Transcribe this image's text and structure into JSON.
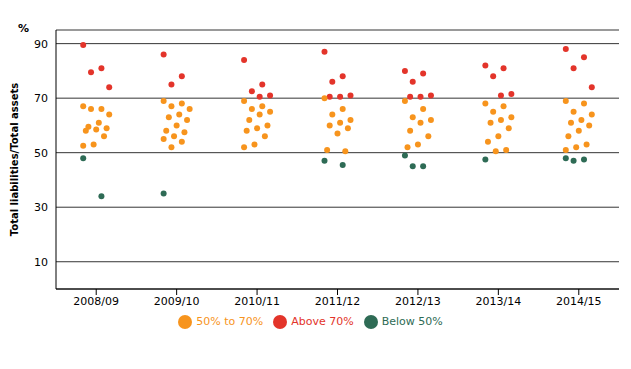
{
  "chart_data": {
    "type": "scatter",
    "y_label": "Total liabilities/Total assets",
    "annotations": [
      "%"
    ],
    "categories": [
      "2008/09",
      "2009/10",
      "2010/11",
      "2011/12",
      "2012/13",
      "2013/14",
      "2014/15"
    ],
    "ylim": [
      0,
      95
    ],
    "yticks": [
      10,
      30,
      50,
      70,
      90
    ],
    "grid": true,
    "legend": "bottom",
    "marker": "circle",
    "series": [
      {
        "name": "Above 70%",
        "color": "#e3342a",
        "x": [
          "2008/09",
          "2008/09",
          "2008/09",
          "2008/09",
          "2009/10",
          "2009/10",
          "2009/10",
          "2010/11",
          "2010/11",
          "2010/11",
          "2010/11",
          "2010/11",
          "2011/12",
          "2011/12",
          "2011/12",
          "2011/12",
          "2011/12",
          "2011/12",
          "2012/13",
          "2012/13",
          "2012/13",
          "2012/13",
          "2012/13",
          "2012/13",
          "2013/14",
          "2013/14",
          "2013/14",
          "2013/14",
          "2013/14",
          "2014/15",
          "2014/15",
          "2014/15",
          "2014/15"
        ],
        "y": [
          89.5,
          81,
          79.5,
          74,
          86,
          78,
          75,
          84,
          75,
          72.5,
          71,
          70.5,
          87,
          78,
          76,
          71,
          70.5,
          70.5,
          80,
          79,
          76,
          71,
          70.5,
          70.5,
          82,
          81,
          78,
          71.5,
          71,
          88,
          85,
          81,
          74
        ]
      },
      {
        "name": "50% to 70%",
        "color": "#f7941d",
        "x": [
          "2008/09",
          "2008/09",
          "2008/09",
          "2008/09",
          "2008/09",
          "2008/09",
          "2008/09",
          "2008/09",
          "2008/09",
          "2008/09",
          "2008/09",
          "2008/09",
          "2009/10",
          "2009/10",
          "2009/10",
          "2009/10",
          "2009/10",
          "2009/10",
          "2009/10",
          "2009/10",
          "2009/10",
          "2009/10",
          "2009/10",
          "2009/10",
          "2009/10",
          "2009/10",
          "2010/11",
          "2010/11",
          "2010/11",
          "2010/11",
          "2010/11",
          "2010/11",
          "2010/11",
          "2010/11",
          "2010/11",
          "2010/11",
          "2010/11",
          "2010/11",
          "2011/12",
          "2011/12",
          "2011/12",
          "2011/12",
          "2011/12",
          "2011/12",
          "2011/12",
          "2011/12",
          "2011/12",
          "2011/12",
          "2012/13",
          "2012/13",
          "2012/13",
          "2012/13",
          "2012/13",
          "2012/13",
          "2012/13",
          "2012/13",
          "2012/13",
          "2013/14",
          "2013/14",
          "2013/14",
          "2013/14",
          "2013/14",
          "2013/14",
          "2013/14",
          "2013/14",
          "2013/14",
          "2013/14",
          "2013/14",
          "2014/15",
          "2014/15",
          "2014/15",
          "2014/15",
          "2014/15",
          "2014/15",
          "2014/15",
          "2014/15",
          "2014/15",
          "2014/15",
          "2014/15",
          "2014/15"
        ],
        "y": [
          67,
          66,
          66,
          64,
          61,
          59.5,
          59,
          58.5,
          58,
          56,
          53,
          52.5,
          69,
          68,
          67,
          66,
          64,
          63,
          62,
          60,
          58,
          57.5,
          56,
          55,
          54,
          52,
          69,
          67,
          66,
          65,
          64,
          62,
          60,
          59,
          58,
          56,
          53,
          52,
          70,
          66,
          64,
          62,
          61,
          60,
          59,
          57,
          51,
          50.5,
          69,
          66,
          63,
          62,
          61,
          58,
          56,
          53,
          52,
          68,
          67,
          65,
          63,
          62,
          61,
          59,
          56,
          54,
          51,
          50.5,
          69,
          68,
          65,
          64,
          62,
          61,
          60,
          58,
          56,
          53,
          52,
          51
        ]
      },
      {
        "name": "Below 50%",
        "color": "#2e6b55",
        "x": [
          "2008/09",
          "2008/09",
          "2009/10",
          "2011/12",
          "2011/12",
          "2012/13",
          "2012/13",
          "2012/13",
          "2013/14",
          "2014/15",
          "2014/15",
          "2014/15"
        ],
        "y": [
          48,
          34,
          35,
          47,
          45.5,
          49,
          45,
          45,
          47.5,
          48,
          47.5,
          47
        ]
      }
    ]
  }
}
